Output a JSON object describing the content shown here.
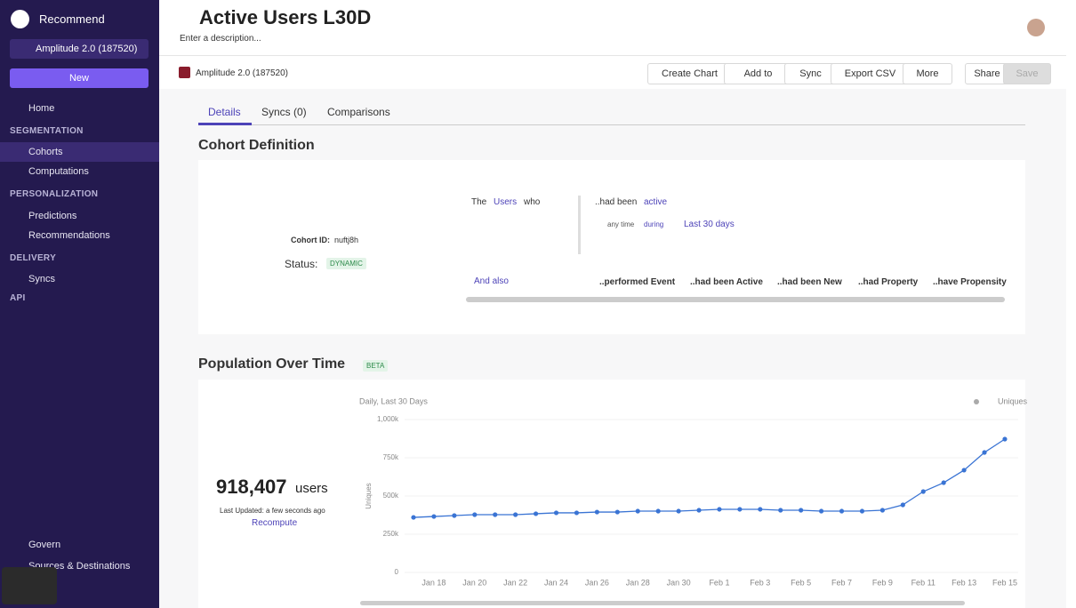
{
  "sidebar": {
    "org": "Recommend",
    "project": "Amplitude 2.0 (187520)",
    "new_button": "New",
    "nav": [
      "Home",
      "SEGMENTATION",
      "Cohorts",
      "Computations",
      "PERSONALIZATION",
      "Predictions",
      "Recommendations",
      "DELIVERY",
      "Syncs",
      "API"
    ],
    "bottom": [
      "Govern",
      "Sources & Destinations"
    ]
  },
  "header": {
    "title": "Active Users L30D",
    "description": "Enter a description..."
  },
  "toolbar": {
    "project": "Amplitude 2.0 (187520)",
    "buttons": [
      "Create Chart",
      "Add to",
      "Sync",
      "Export CSV",
      "More",
      "Share",
      "Save"
    ]
  },
  "tabs": [
    "Details",
    "Syncs (0)",
    "Comparisons"
  ],
  "cohort_definition": {
    "heading": "Cohort Definition",
    "cohort_id_label": "Cohort ID:",
    "cohort_id": "nuftj8h",
    "status_label": "Status:",
    "status": "DYNAMIC",
    "clause": [
      "The",
      "Users",
      "who",
      "..had been",
      "active",
      "any time",
      "during",
      "Last 30 days"
    ],
    "and_also": "And also",
    "options": [
      "..performed Event",
      "..had been Active",
      "..had been New",
      "..had Property",
      "..have Propensity"
    ]
  },
  "population": {
    "heading": "Population Over Time",
    "badge": "BETA",
    "count": "918,407",
    "unit": "users",
    "last_updated": "Last Updated: a few seconds ago",
    "recompute": "Recompute"
  },
  "chart": {
    "type": "line",
    "subtitle": "Daily, Last 30 Days",
    "y_label": "Uniques",
    "grid": true,
    "categories": [
      null,
      "Jan 18",
      null,
      "Jan 20",
      null,
      "Jan 22",
      null,
      "Jan 24",
      null,
      "Jan 26",
      null,
      "Jan 28",
      null,
      "Jan 30",
      null,
      "Feb 1",
      null,
      "Feb 3",
      null,
      "Feb 5",
      null,
      "Feb 7",
      null,
      "Feb 9",
      null,
      "Feb 11",
      null,
      "Feb 13",
      null,
      "Feb 15"
    ],
    "series": [
      {
        "name": "Uniques",
        "color": "#3a74d4",
        "values": [
          360000,
          366000,
          372000,
          378000,
          378000,
          378000,
          384000,
          390000,
          390000,
          395000,
          395000,
          401000,
          401000,
          401000,
          407000,
          413000,
          413000,
          413000,
          407000,
          407000,
          401000,
          401000,
          401000,
          407000,
          442000,
          529000,
          587000,
          669000,
          785000,
          872000
        ]
      }
    ],
    "ylim": [
      0,
      1000000
    ],
    "yticks": [
      0,
      {
        "value": 250000,
        "label": "250k"
      },
      {
        "value": 500000,
        "label": "500k"
      },
      {
        "value": 750000,
        "label": "750k"
      },
      {
        "value": 1000000,
        "label": "1,000k"
      }
    ]
  }
}
